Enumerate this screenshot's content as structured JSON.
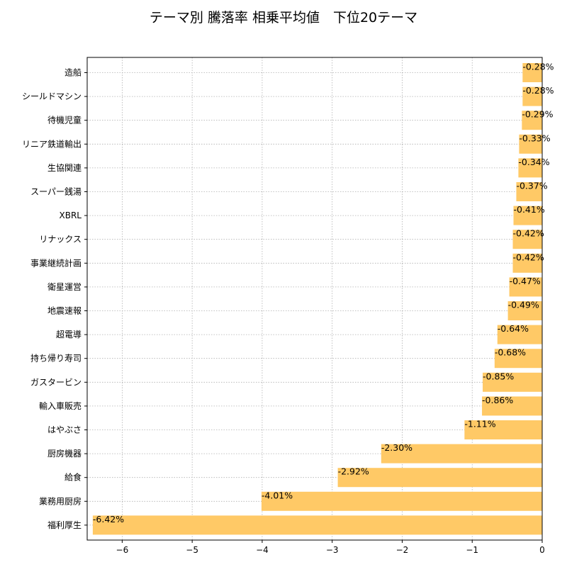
{
  "chart_data": {
    "type": "bar",
    "orientation": "horizontal",
    "title": "テーマ別 騰落率 相乗平均値　下位20テーマ",
    "xlabel": "",
    "ylabel": "",
    "xlim": [
      -6.5,
      0
    ],
    "xticks": [
      -6,
      -5,
      -4,
      -3,
      -2,
      -1,
      0
    ],
    "xtick_labels": [
      "−6",
      "−5",
      "−4",
      "−3",
      "−2",
      "−1",
      "0"
    ],
    "grid": true,
    "bar_color": "#ffc966",
    "categories": [
      "造船",
      "シールドマシン",
      "待機児童",
      "リニア鉄道輸出",
      "生協関連",
      "スーパー銭湯",
      "XBRL",
      "リナックス",
      "事業継続計画",
      "衛星運営",
      "地震速報",
      "超電導",
      "持ち帰り寿司",
      "ガスタービン",
      "輸入車販売",
      "はやぶさ",
      "厨房機器",
      "給食",
      "業務用厨房",
      "福利厚生"
    ],
    "values": [
      -0.28,
      -0.28,
      -0.29,
      -0.33,
      -0.34,
      -0.37,
      -0.41,
      -0.42,
      -0.42,
      -0.47,
      -0.49,
      -0.64,
      -0.68,
      -0.85,
      -0.86,
      -1.11,
      -2.3,
      -2.92,
      -4.01,
      -6.42
    ],
    "value_labels": [
      "-0.28%",
      "-0.28%",
      "-0.29%",
      "-0.33%",
      "-0.34%",
      "-0.37%",
      "-0.41%",
      "-0.42%",
      "-0.42%",
      "-0.47%",
      "-0.49%",
      "-0.64%",
      "-0.68%",
      "-0.85%",
      "-0.86%",
      "-1.11%",
      "-2.30%",
      "-2.92%",
      "-4.01%",
      "-6.42%"
    ]
  }
}
